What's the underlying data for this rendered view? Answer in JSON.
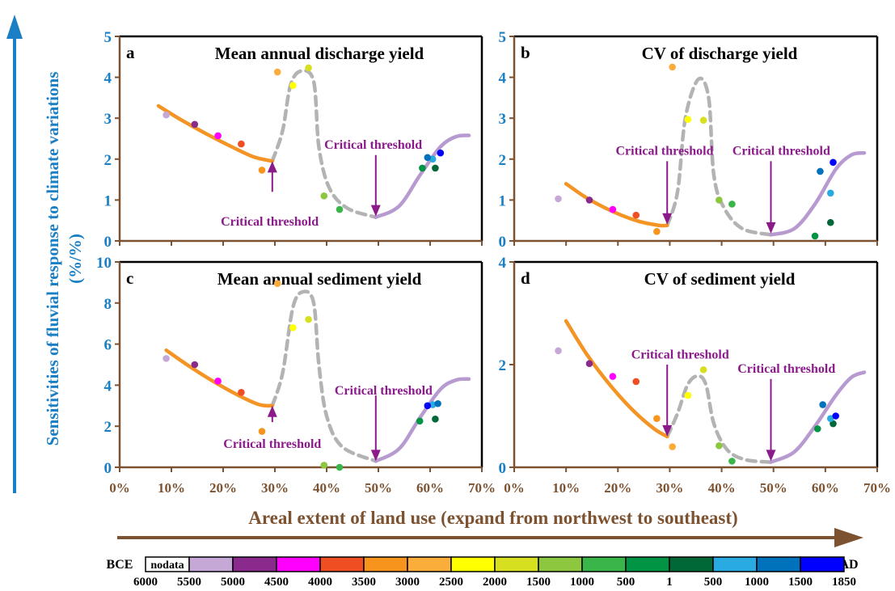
{
  "y_axis_title_line1": "Sensitivities of fluvial response to climate variations",
  "y_axis_title_line2": "(%/%)",
  "x_axis_title": "Areal extent of land use (expand from northwest to southeast)",
  "colors": {
    "blue": "#1a7fc4",
    "brown": "#7d5230",
    "orange": "#f39425",
    "purple_line": "#b69ad0",
    "gray_dash": "#b3b3b3",
    "annotation": "#8b1a8b"
  },
  "legend": {
    "left_label": "BCE",
    "right_label": "AD",
    "nodata_label": "nodata",
    "swatches": [
      "#c5a8d6",
      "#8a2a8d",
      "#ff00ff",
      "#ef4e23",
      "#f7941d",
      "#fbad3c",
      "#ffff00",
      "#d7e020",
      "#8dc63f",
      "#39b54a",
      "#009444",
      "#006837",
      "#29abe2",
      "#0072bc",
      "#0000ff"
    ],
    "ticks": [
      "6000",
      "5500",
      "5000",
      "4500",
      "4000",
      "3500",
      "3000",
      "2500",
      "2000",
      "1500",
      "1000",
      "500",
      "1",
      "500",
      "1000",
      "1500",
      "1850"
    ]
  },
  "chart_data": [
    {
      "type": "scatter",
      "panel": "a",
      "title": "Mean annual discharge yield",
      "ylim": [
        0,
        5
      ],
      "yticks": [
        "0",
        "1",
        "2",
        "3",
        "4",
        "5"
      ],
      "xlim": [
        0,
        70
      ],
      "xticks": [
        "0%",
        "10%",
        "20%",
        "30%",
        "40%",
        "50%",
        "60%",
        "70%"
      ],
      "points": [
        {
          "x": 9,
          "y": 3.08,
          "color": "#c5a8d6"
        },
        {
          "x": 14.5,
          "y": 2.85,
          "color": "#8a2a8d"
        },
        {
          "x": 19,
          "y": 2.57,
          "color": "#ff00ff"
        },
        {
          "x": 23.5,
          "y": 2.37,
          "color": "#ef4e23"
        },
        {
          "x": 27.5,
          "y": 1.73,
          "color": "#f7941d"
        },
        {
          "x": 30.5,
          "y": 4.13,
          "color": "#fbad3c"
        },
        {
          "x": 33.5,
          "y": 3.8,
          "color": "#ffff00"
        },
        {
          "x": 36.5,
          "y": 4.23,
          "color": "#d7e020"
        },
        {
          "x": 39.5,
          "y": 1.1,
          "color": "#8dc63f"
        },
        {
          "x": 42.5,
          "y": 0.77,
          "color": "#39b54a"
        },
        {
          "x": 58.5,
          "y": 1.78,
          "color": "#009444"
        },
        {
          "x": 61,
          "y": 1.78,
          "color": "#006837"
        },
        {
          "x": 60.5,
          "y": 2.0,
          "color": "#29abe2"
        },
        {
          "x": 59.5,
          "y": 2.04,
          "color": "#0072bc"
        },
        {
          "x": 62,
          "y": 2.15,
          "color": "#0000ff"
        }
      ],
      "orange_curve": [
        [
          7.5,
          3.3
        ],
        [
          12,
          2.95
        ],
        [
          17,
          2.6
        ],
        [
          22,
          2.28
        ],
        [
          26,
          2.05
        ],
        [
          29.5,
          1.95
        ]
      ],
      "gray_curve": [
        [
          29.5,
          1.95
        ],
        [
          31.5,
          2.7
        ],
        [
          33,
          3.8
        ],
        [
          35,
          4.15
        ],
        [
          37.5,
          3.9
        ],
        [
          38.5,
          2.3
        ],
        [
          40.5,
          1.3
        ],
        [
          44,
          0.8
        ],
        [
          49.5,
          0.58
        ]
      ],
      "purple_curve": [
        [
          49.5,
          0.58
        ],
        [
          54,
          0.85
        ],
        [
          58,
          1.6
        ],
        [
          62,
          2.3
        ],
        [
          65,
          2.55
        ],
        [
          67.5,
          2.58
        ]
      ],
      "annotations": [
        {
          "text": "Critical threshold",
          "arrow_x": 29.5,
          "arrow_from": 1.2,
          "arrow_to": 1.95,
          "dir": "up",
          "label_x": 29,
          "label_y": 0.38
        },
        {
          "text": "Critical threshold",
          "arrow_x": 49.5,
          "arrow_from": 2.1,
          "arrow_to": 0.6,
          "dir": "down",
          "label_x": 49,
          "label_y": 2.25
        }
      ]
    },
    {
      "type": "scatter",
      "panel": "b",
      "title": "CV of discharge yield",
      "ylim": [
        0,
        5
      ],
      "yticks": [
        "0",
        "1",
        "2",
        "3",
        "4",
        "5"
      ],
      "xlim": [
        0,
        70
      ],
      "xticks": [
        "0%",
        "10%",
        "20%",
        "30%",
        "40%",
        "50%",
        "60%",
        "70%"
      ],
      "points": [
        {
          "x": 8.5,
          "y": 1.03,
          "color": "#c5a8d6"
        },
        {
          "x": 14.5,
          "y": 1.0,
          "color": "#8a2a8d"
        },
        {
          "x": 19,
          "y": 0.77,
          "color": "#ff00ff"
        },
        {
          "x": 23.5,
          "y": 0.63,
          "color": "#ef4e23"
        },
        {
          "x": 27.5,
          "y": 0.23,
          "color": "#f7941d"
        },
        {
          "x": 30.5,
          "y": 4.25,
          "color": "#fbad3c"
        },
        {
          "x": 33.5,
          "y": 2.97,
          "color": "#ffff00"
        },
        {
          "x": 36.5,
          "y": 2.95,
          "color": "#d7e020"
        },
        {
          "x": 39.5,
          "y": 1.0,
          "color": "#8dc63f"
        },
        {
          "x": 42,
          "y": 0.9,
          "color": "#39b54a"
        },
        {
          "x": 58,
          "y": 0.12,
          "color": "#009444"
        },
        {
          "x": 61,
          "y": 0.45,
          "color": "#006837"
        },
        {
          "x": 61,
          "y": 1.17,
          "color": "#29abe2"
        },
        {
          "x": 59,
          "y": 1.7,
          "color": "#0072bc"
        },
        {
          "x": 61.5,
          "y": 1.92,
          "color": "#0000ff"
        }
      ],
      "orange_curve": [
        [
          10,
          1.4
        ],
        [
          14,
          1.05
        ],
        [
          19,
          0.72
        ],
        [
          24,
          0.48
        ],
        [
          28,
          0.38
        ],
        [
          29.5,
          0.38
        ]
      ],
      "gray_curve": [
        [
          29.5,
          0.38
        ],
        [
          31.5,
          1.2
        ],
        [
          33,
          3.0
        ],
        [
          35.5,
          3.95
        ],
        [
          37.5,
          3.5
        ],
        [
          38.5,
          1.6
        ],
        [
          40.5,
          0.8
        ],
        [
          44,
          0.3
        ],
        [
          49.5,
          0.15
        ]
      ],
      "purple_curve": [
        [
          49.5,
          0.15
        ],
        [
          54,
          0.3
        ],
        [
          58,
          0.9
        ],
        [
          62,
          1.75
        ],
        [
          65,
          2.1
        ],
        [
          67.5,
          2.15
        ]
      ],
      "annotations": [
        {
          "text": "Critical threshold",
          "arrow_x": 29.5,
          "arrow_from": 1.95,
          "arrow_to": 0.4,
          "dir": "down",
          "label_x": 29,
          "label_y": 2.1
        },
        {
          "text": "Critical threshold",
          "arrow_x": 49.5,
          "arrow_from": 1.95,
          "arrow_to": 0.18,
          "dir": "down",
          "label_x": 51.5,
          "label_y": 2.1
        }
      ]
    },
    {
      "type": "scatter",
      "panel": "c",
      "title": "Mean annual sediment yield",
      "ylim": [
        0,
        10
      ],
      "yticks": [
        "0",
        "2",
        "4",
        "6",
        "8",
        "10"
      ],
      "xlim": [
        0,
        70
      ],
      "xticks": [
        "0%",
        "10%",
        "20%",
        "30%",
        "40%",
        "50%",
        "60%",
        "70%"
      ],
      "points": [
        {
          "x": 9,
          "y": 5.3,
          "color": "#c5a8d6"
        },
        {
          "x": 14.5,
          "y": 5.0,
          "color": "#8a2a8d"
        },
        {
          "x": 19,
          "y": 4.2,
          "color": "#ff00ff"
        },
        {
          "x": 23.5,
          "y": 3.65,
          "color": "#ef4e23"
        },
        {
          "x": 27.5,
          "y": 1.75,
          "color": "#f7941d"
        },
        {
          "x": 30.5,
          "y": 8.95,
          "color": "#fbad3c"
        },
        {
          "x": 33.5,
          "y": 6.8,
          "color": "#ffff00"
        },
        {
          "x": 36.5,
          "y": 7.2,
          "color": "#d7e020"
        },
        {
          "x": 39.5,
          "y": 0.1,
          "color": "#8dc63f"
        },
        {
          "x": 42.5,
          "y": 0.0,
          "color": "#39b54a"
        },
        {
          "x": 58,
          "y": 2.25,
          "color": "#009444"
        },
        {
          "x": 61,
          "y": 2.35,
          "color": "#006837"
        },
        {
          "x": 60.5,
          "y": 3.05,
          "color": "#29abe2"
        },
        {
          "x": 61.5,
          "y": 3.1,
          "color": "#0072bc"
        },
        {
          "x": 59.5,
          "y": 3.0,
          "color": "#0000ff"
        }
      ],
      "orange_curve": [
        [
          9,
          5.7
        ],
        [
          13,
          5.0
        ],
        [
          18,
          4.2
        ],
        [
          23,
          3.5
        ],
        [
          27,
          3.05
        ],
        [
          29.5,
          3.0
        ]
      ],
      "gray_curve": [
        [
          29.5,
          3.0
        ],
        [
          31.5,
          4.6
        ],
        [
          33.5,
          7.8
        ],
        [
          35.5,
          8.55
        ],
        [
          37.5,
          8.0
        ],
        [
          38.5,
          5.0
        ],
        [
          40,
          2.5
        ],
        [
          43,
          1.0
        ],
        [
          49.5,
          0.3
        ]
      ],
      "purple_curve": [
        [
          49.5,
          0.3
        ],
        [
          54,
          0.9
        ],
        [
          58,
          2.4
        ],
        [
          62,
          3.8
        ],
        [
          65,
          4.25
        ],
        [
          67.5,
          4.3
        ]
      ],
      "annotations": [
        {
          "text": "Critical threshold",
          "arrow_x": 29.5,
          "arrow_from": 2.2,
          "arrow_to": 3.0,
          "dir": "up",
          "label_x": 29.5,
          "label_y": 0.95
        },
        {
          "text": "Critical threshold",
          "arrow_x": 49.5,
          "arrow_from": 3.5,
          "arrow_to": 0.3,
          "dir": "down",
          "label_x": 51,
          "label_y": 3.55
        }
      ]
    },
    {
      "type": "scatter",
      "panel": "d",
      "title": "CV of sediment yield",
      "ylim": [
        0,
        4
      ],
      "yticks": [
        "0",
        "2",
        "4"
      ],
      "xlim": [
        0,
        70
      ],
      "xticks": [
        "0%",
        "10%",
        "20%",
        "30%",
        "40%",
        "50%",
        "60%",
        "70%"
      ],
      "points": [
        {
          "x": 8.5,
          "y": 2.27,
          "color": "#c5a8d6"
        },
        {
          "x": 14.5,
          "y": 2.02,
          "color": "#8a2a8d"
        },
        {
          "x": 19,
          "y": 1.77,
          "color": "#ff00ff"
        },
        {
          "x": 23.5,
          "y": 1.67,
          "color": "#ef4e23"
        },
        {
          "x": 27.5,
          "y": 0.95,
          "color": "#f7941d"
        },
        {
          "x": 30.5,
          "y": 0.4,
          "color": "#fbad3c"
        },
        {
          "x": 33.5,
          "y": 1.4,
          "color": "#ffff00"
        },
        {
          "x": 36.5,
          "y": 1.9,
          "color": "#d7e020"
        },
        {
          "x": 39.5,
          "y": 0.42,
          "color": "#8dc63f"
        },
        {
          "x": 42,
          "y": 0.12,
          "color": "#39b54a"
        },
        {
          "x": 58.5,
          "y": 0.75,
          "color": "#009444"
        },
        {
          "x": 61.5,
          "y": 0.85,
          "color": "#006837"
        },
        {
          "x": 61,
          "y": 0.95,
          "color": "#29abe2"
        },
        {
          "x": 59.5,
          "y": 1.22,
          "color": "#0072bc"
        },
        {
          "x": 62,
          "y": 1.0,
          "color": "#0000ff"
        }
      ],
      "orange_curve": [
        [
          10,
          2.85
        ],
        [
          14,
          2.2
        ],
        [
          18.5,
          1.6
        ],
        [
          23,
          1.1
        ],
        [
          27,
          0.75
        ],
        [
          29.5,
          0.6
        ]
      ],
      "gray_curve": [
        [
          29.5,
          0.6
        ],
        [
          31.5,
          1.05
        ],
        [
          33.5,
          1.62
        ],
        [
          35.5,
          1.78
        ],
        [
          37,
          1.6
        ],
        [
          38.5,
          0.85
        ],
        [
          41,
          0.35
        ],
        [
          44.5,
          0.15
        ],
        [
          49.5,
          0.1
        ]
      ],
      "purple_curve": [
        [
          49.5,
          0.1
        ],
        [
          54,
          0.3
        ],
        [
          58,
          0.8
        ],
        [
          62,
          1.4
        ],
        [
          65,
          1.75
        ],
        [
          67.5,
          1.85
        ]
      ],
      "annotations": [
        {
          "text": "Critical threshold",
          "arrow_x": 29.5,
          "arrow_from": 2.0,
          "arrow_to": 0.6,
          "dir": "down",
          "label_x": 32,
          "label_y": 2.12
        },
        {
          "text": "Critical threshold",
          "arrow_x": 49.5,
          "arrow_from": 1.72,
          "arrow_to": 0.12,
          "dir": "down",
          "label_x": 52.5,
          "label_y": 1.84
        }
      ]
    }
  ]
}
